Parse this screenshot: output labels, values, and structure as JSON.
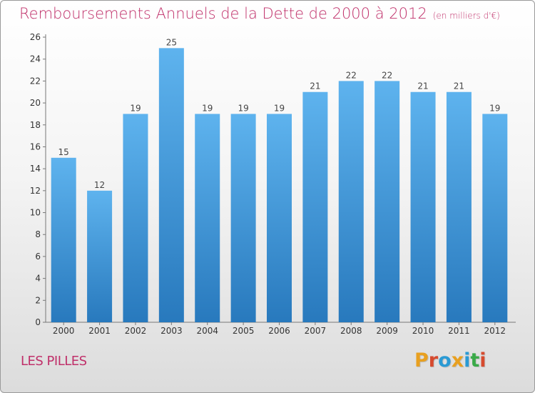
{
  "header": {
    "title": "Remboursements Annuels de la Dette de 2000 à 2012",
    "unit": "(en milliers d'€)"
  },
  "footer": {
    "locality": "LES PILLES",
    "logo": "Proxiti"
  },
  "colors": {
    "title": "#c0306a",
    "bar_light": "#5eb3ee",
    "bar_dark": "#2879bd",
    "logo_letters": [
      "#e8a020",
      "#d64a2e",
      "#2a9ad4",
      "#e8a020",
      "#2a9ad4",
      "#3aaa48",
      "#d64a2e"
    ]
  },
  "chart_data": {
    "type": "bar",
    "categories": [
      "2000",
      "2001",
      "2002",
      "2003",
      "2004",
      "2005",
      "2006",
      "2007",
      "2008",
      "2009",
      "2010",
      "2011",
      "2012"
    ],
    "values": [
      15,
      12,
      19,
      25,
      19,
      19,
      19,
      21,
      22,
      22,
      21,
      21,
      19
    ],
    "data_labels": [
      "15",
      "12",
      "19",
      "25",
      "19",
      "19",
      "19",
      "21",
      "22",
      "22",
      "21",
      "21",
      "19"
    ],
    "ylim": [
      0,
      26
    ],
    "yticks": [
      0,
      2,
      4,
      6,
      8,
      10,
      12,
      14,
      16,
      18,
      20,
      22,
      24,
      26
    ],
    "grid": false,
    "legend": "none"
  }
}
